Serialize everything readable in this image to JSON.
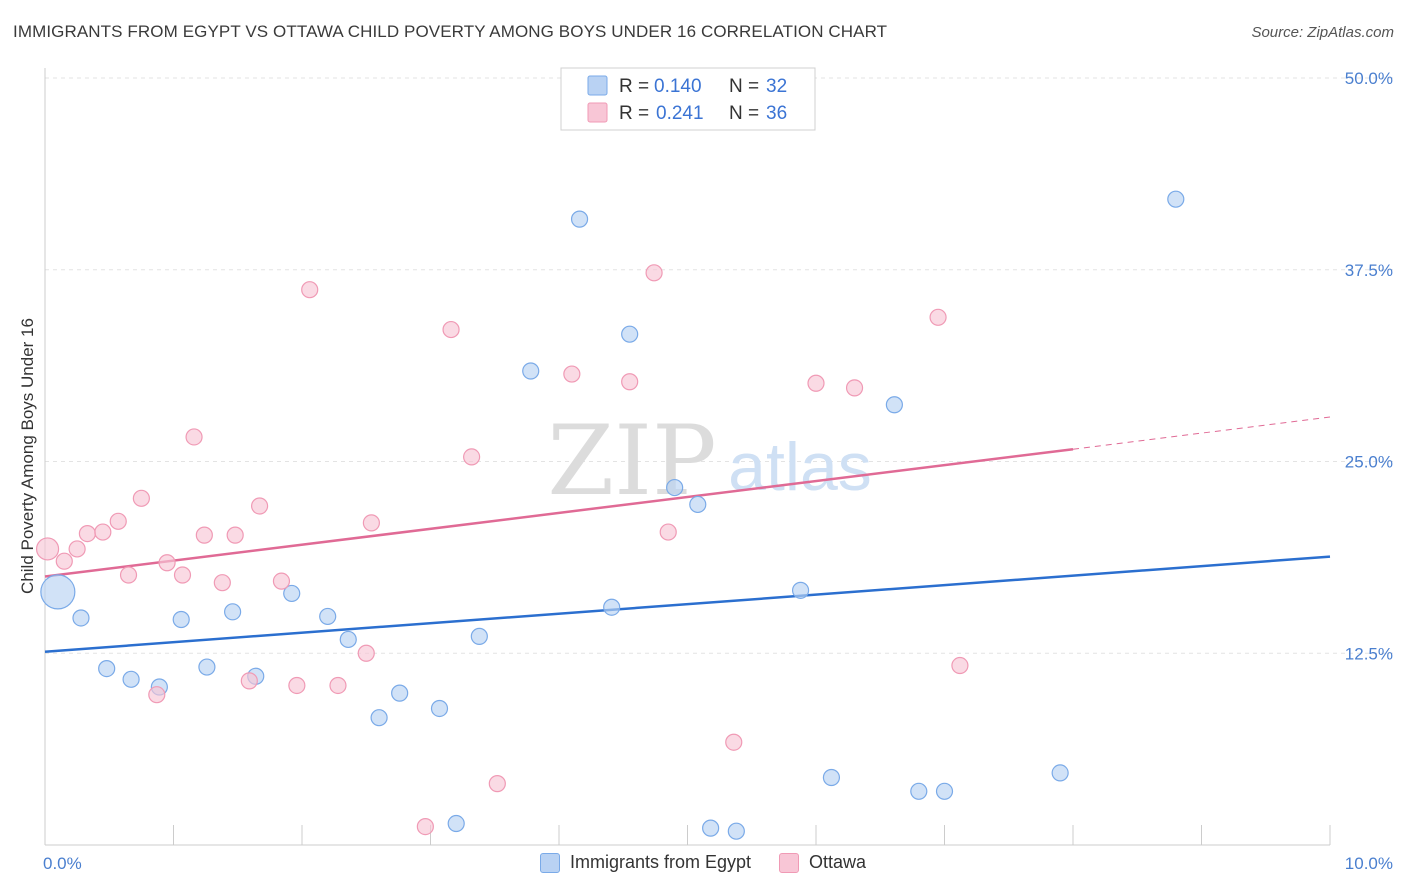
{
  "title": "IMMIGRANTS FROM EGYPT VS OTTAWA CHILD POVERTY AMONG BOYS UNDER 16 CORRELATION CHART",
  "source": "Source: ZipAtlas.com",
  "watermark": {
    "zip": "ZIP",
    "atlas": "atlas"
  },
  "legend": {
    "rows": [
      {
        "r_label": "R =",
        "r_value": "0.140",
        "n_label": "N =",
        "n_value": "32"
      },
      {
        "r_label": "R =",
        "r_value": "0.241",
        "n_label": "N =",
        "n_value": "36"
      }
    ]
  },
  "chart_data": {
    "type": "scatter",
    "xlabel": "",
    "ylabel": "Child Poverty Among Boys Under 16",
    "xlim": [
      0,
      10
    ],
    "ylim": [
      0,
      50
    ],
    "x_tick_labels": [
      "0.0%",
      "10.0%"
    ],
    "y_ticks": [
      12.5,
      25.0,
      37.5,
      50.0
    ],
    "y_tick_labels": [
      "12.5%",
      "25.0%",
      "37.5%",
      "50.0%"
    ],
    "grid": true,
    "series": [
      {
        "name": "Immigrants from Egypt",
        "color": "#7aaae8",
        "fill": "#b9d2f3",
        "line_color": "#2b6fcf",
        "trend": {
          "x0": 0,
          "y0": 12.6,
          "x1": 10,
          "y1": 18.8
        },
        "points": [
          {
            "x": 0.1,
            "y": 16.5,
            "size": "large"
          },
          {
            "x": 0.28,
            "y": 14.8
          },
          {
            "x": 0.48,
            "y": 11.5
          },
          {
            "x": 0.67,
            "y": 10.8
          },
          {
            "x": 0.89,
            "y": 10.3
          },
          {
            "x": 1.06,
            "y": 14.7
          },
          {
            "x": 1.26,
            "y": 11.6
          },
          {
            "x": 1.46,
            "y": 15.2
          },
          {
            "x": 1.64,
            "y": 11.0
          },
          {
            "x": 1.92,
            "y": 16.4
          },
          {
            "x": 2.2,
            "y": 14.9
          },
          {
            "x": 2.36,
            "y": 13.4
          },
          {
            "x": 2.6,
            "y": 8.3
          },
          {
            "x": 2.76,
            "y": 9.9
          },
          {
            "x": 3.07,
            "y": 8.9
          },
          {
            "x": 3.2,
            "y": 1.4
          },
          {
            "x": 3.38,
            "y": 13.6
          },
          {
            "x": 3.78,
            "y": 30.9
          },
          {
            "x": 4.16,
            "y": 40.8
          },
          {
            "x": 4.41,
            "y": 15.5
          },
          {
            "x": 4.55,
            "y": 33.3
          },
          {
            "x": 4.9,
            "y": 23.3
          },
          {
            "x": 5.08,
            "y": 22.2
          },
          {
            "x": 5.18,
            "y": 1.1
          },
          {
            "x": 5.38,
            "y": 0.9
          },
          {
            "x": 5.88,
            "y": 16.6
          },
          {
            "x": 6.12,
            "y": 4.4
          },
          {
            "x": 6.61,
            "y": 28.7
          },
          {
            "x": 6.8,
            "y": 3.5
          },
          {
            "x": 7.0,
            "y": 3.5
          },
          {
            "x": 7.9,
            "y": 4.7
          },
          {
            "x": 8.8,
            "y": 42.1
          }
        ]
      },
      {
        "name": "Ottawa",
        "color": "#f09ab5",
        "fill": "#f8c6d6",
        "line_color": "#e06a95",
        "trend": {
          "x0": 0,
          "y0": 17.5,
          "x1": 8.0,
          "y1": 25.8
        },
        "trend_ext": {
          "x0": 8.0,
          "y0": 25.8,
          "x1": 10,
          "y1": 27.9
        },
        "points": [
          {
            "x": 0.02,
            "y": 19.3,
            "size": "medium"
          },
          {
            "x": 0.15,
            "y": 18.5
          },
          {
            "x": 0.25,
            "y": 19.3
          },
          {
            "x": 0.33,
            "y": 20.3
          },
          {
            "x": 0.45,
            "y": 20.4
          },
          {
            "x": 0.57,
            "y": 21.1
          },
          {
            "x": 0.65,
            "y": 17.6
          },
          {
            "x": 0.75,
            "y": 22.6
          },
          {
            "x": 0.87,
            "y": 9.8
          },
          {
            "x": 0.95,
            "y": 18.4
          },
          {
            "x": 1.07,
            "y": 17.6
          },
          {
            "x": 1.16,
            "y": 26.6
          },
          {
            "x": 1.24,
            "y": 20.2
          },
          {
            "x": 1.38,
            "y": 17.1
          },
          {
            "x": 1.48,
            "y": 20.2
          },
          {
            "x": 1.59,
            "y": 10.7
          },
          {
            "x": 1.67,
            "y": 22.1
          },
          {
            "x": 1.84,
            "y": 17.2
          },
          {
            "x": 1.96,
            "y": 10.4
          },
          {
            "x": 2.06,
            "y": 36.2
          },
          {
            "x": 2.28,
            "y": 10.4
          },
          {
            "x": 2.5,
            "y": 12.5
          },
          {
            "x": 2.54,
            "y": 21.0
          },
          {
            "x": 2.96,
            "y": 1.2
          },
          {
            "x": 3.16,
            "y": 33.6
          },
          {
            "x": 3.32,
            "y": 25.3
          },
          {
            "x": 3.52,
            "y": 4.0
          },
          {
            "x": 4.1,
            "y": 30.7
          },
          {
            "x": 4.55,
            "y": 30.2
          },
          {
            "x": 4.74,
            "y": 37.3
          },
          {
            "x": 4.85,
            "y": 20.4
          },
          {
            "x": 5.36,
            "y": 6.7
          },
          {
            "x": 6.0,
            "y": 30.1
          },
          {
            "x": 6.3,
            "y": 29.8
          },
          {
            "x": 6.95,
            "y": 34.4
          },
          {
            "x": 7.12,
            "y": 11.7
          }
        ]
      }
    ]
  }
}
